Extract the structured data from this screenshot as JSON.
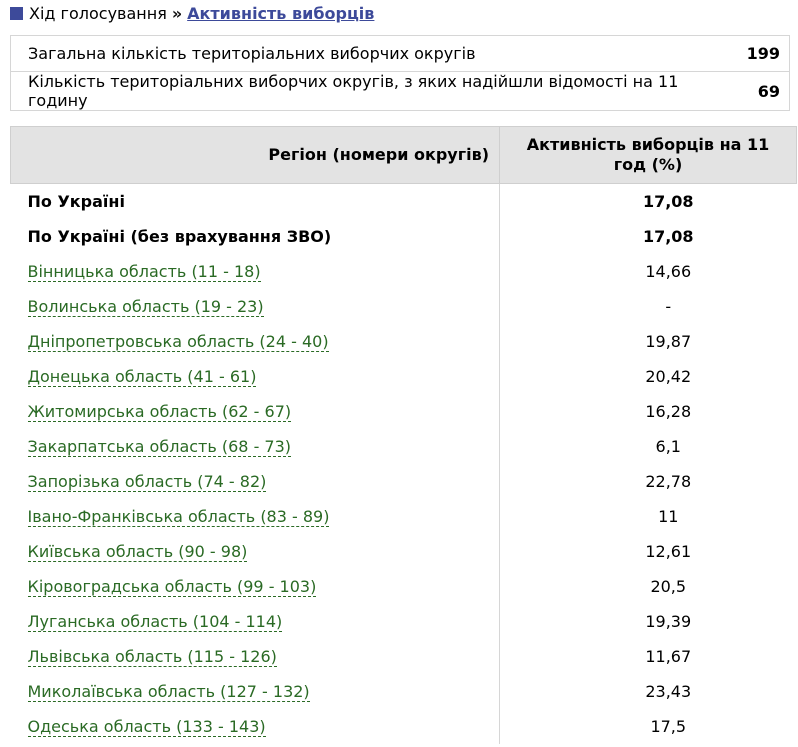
{
  "breadcrumb": {
    "parent": "Хід голосування",
    "separator": "»",
    "current": "Активність виборців"
  },
  "summary": [
    {
      "label": "Загальна кількість територіальних виборчих округів",
      "value": "199"
    },
    {
      "label": "Кількість територіальних виборчих округів, з яких надійшли відомості на 11 годину",
      "value": "69"
    }
  ],
  "table": {
    "header_region": "Регіон (номери округів)",
    "header_value": "Активність виборців на 11 год (%)",
    "totals": [
      {
        "region": "По Україні",
        "value": "17,08"
      },
      {
        "region": "По Україні (без врахування ЗВО)",
        "value": "17,08"
      }
    ],
    "rows": [
      {
        "region": "Вінницька область (11 - 18)",
        "value": "14,66"
      },
      {
        "region": "Волинська область (19 - 23)",
        "value": "-"
      },
      {
        "region": "Дніпропетровська область (24 - 40)",
        "value": "19,87"
      },
      {
        "region": "Донецька область (41 - 61)",
        "value": "20,42"
      },
      {
        "region": "Житомирська область (62 - 67)",
        "value": "16,28"
      },
      {
        "region": "Закарпатська область (68 - 73)",
        "value": "6,1"
      },
      {
        "region": "Запорізька область (74 - 82)",
        "value": "22,78"
      },
      {
        "region": "Івано-Франківська область (83 - 89)",
        "value": "11"
      },
      {
        "region": "Київська область (90 - 98)",
        "value": "12,61"
      },
      {
        "region": "Кіровоградська область (99 - 103)",
        "value": "20,5"
      },
      {
        "region": "Луганська область (104 - 114)",
        "value": "19,39"
      },
      {
        "region": "Львівська область (115 - 126)",
        "value": "11,67"
      },
      {
        "region": "Миколаївська область (127 - 132)",
        "value": "23,43"
      },
      {
        "region": "Одеська область (133 - 143)",
        "value": "17,5"
      }
    ]
  }
}
